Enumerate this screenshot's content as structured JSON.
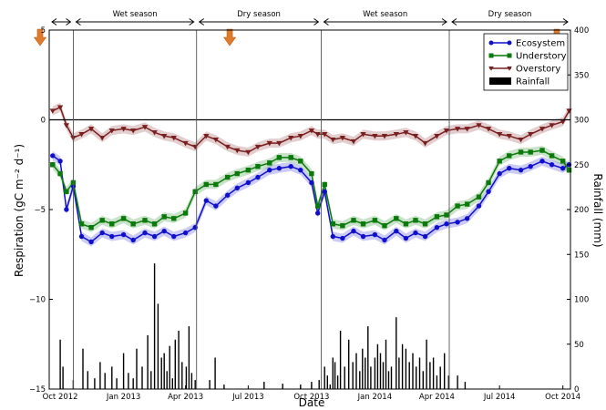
{
  "chart_data": {
    "type": "line",
    "xlabel": "Date",
    "ylabel_left": "Respiration (gC m⁻² d⁻¹)",
    "ylabel_right": "Rainfall (mm)",
    "ylim_left": [
      -15,
      5
    ],
    "ylim_right": [
      0,
      400
    ],
    "x_range": [
      "2012-09-15",
      "2014-10-12"
    ],
    "x_ticks": [
      {
        "date": "2012-10-01",
        "label": "Oct 2012"
      },
      {
        "date": "2013-01-01",
        "label": "Jan 2013"
      },
      {
        "date": "2013-04-01",
        "label": "Apr 2013"
      },
      {
        "date": "2013-07-01",
        "label": "Jul 2013"
      },
      {
        "date": "2013-10-01",
        "label": "Oct 2013"
      },
      {
        "date": "2014-01-01",
        "label": "Jan 2014"
      },
      {
        "date": "2014-04-01",
        "label": "Apr 2014"
      },
      {
        "date": "2014-07-01",
        "label": "Jul 2014"
      },
      {
        "date": "2014-10-01",
        "label": "Oct 2014"
      }
    ],
    "y_ticks_left": [
      5,
      0,
      -5,
      -10,
      -15
    ],
    "y_ticks_right": [
      400,
      350,
      300,
      250,
      200,
      150,
      100,
      50,
      0
    ],
    "season_boundaries": [
      "2012-10-20",
      "2013-04-17",
      "2013-10-15",
      "2014-04-19"
    ],
    "seasons": [
      {
        "label": "",
        "start": "2012-09-15",
        "end": "2012-10-20"
      },
      {
        "label": "Wet season",
        "start": "2012-10-20",
        "end": "2013-04-17"
      },
      {
        "label": "Dry season",
        "start": "2013-04-17",
        "end": "2013-10-15"
      },
      {
        "label": "Wet season",
        "start": "2013-10-15",
        "end": "2014-04-19"
      },
      {
        "label": "Dry season",
        "start": "2014-04-19",
        "end": "2014-10-12"
      }
    ],
    "event_arrows": [
      "2012-09-15",
      "2013-06-20",
      "2014-10-08"
    ],
    "zero_line": 0,
    "legend_position": "top-right",
    "series": [
      {
        "name": "Ecosystem",
        "color": "#1010cc",
        "marker": "circle",
        "x": [
          "2012-09-20",
          "2012-10-01",
          "2012-10-10",
          "2012-10-20",
          "2012-11-01",
          "2012-11-15",
          "2012-12-01",
          "2012-12-15",
          "2013-01-01",
          "2013-01-15",
          "2013-02-01",
          "2013-02-15",
          "2013-03-01",
          "2013-03-15",
          "2013-04-01",
          "2013-04-15",
          "2013-05-01",
          "2013-05-15",
          "2013-06-01",
          "2013-06-15",
          "2013-07-01",
          "2013-07-15",
          "2013-08-01",
          "2013-08-15",
          "2013-09-01",
          "2013-09-15",
          "2013-10-01",
          "2013-10-10",
          "2013-10-20",
          "2013-11-01",
          "2013-11-15",
          "2013-12-01",
          "2013-12-15",
          "2014-01-01",
          "2014-01-15",
          "2014-02-01",
          "2014-02-15",
          "2014-03-01",
          "2014-03-15",
          "2014-04-01",
          "2014-04-15",
          "2014-05-01",
          "2014-05-15",
          "2014-06-01",
          "2014-06-15",
          "2014-07-01",
          "2014-07-15",
          "2014-08-01",
          "2014-08-15",
          "2014-09-01",
          "2014-09-15",
          "2014-10-01",
          "2014-10-10"
        ],
        "y": [
          -2.0,
          -2.3,
          -5.0,
          -3.7,
          -6.5,
          -6.8,
          -6.3,
          -6.5,
          -6.4,
          -6.7,
          -6.3,
          -6.5,
          -6.2,
          -6.5,
          -6.3,
          -6.0,
          -4.5,
          -4.8,
          -4.2,
          -3.8,
          -3.5,
          -3.2,
          -2.8,
          -2.7,
          -2.6,
          -2.8,
          -3.5,
          -5.2,
          -4.0,
          -6.5,
          -6.6,
          -6.2,
          -6.5,
          -6.4,
          -6.7,
          -6.2,
          -6.6,
          -6.3,
          -6.5,
          -6.0,
          -5.8,
          -5.7,
          -5.5,
          -4.8,
          -4.0,
          -3.0,
          -2.7,
          -2.8,
          -2.6,
          -2.3,
          -2.5,
          -2.7,
          -2.5
        ]
      },
      {
        "name": "Understory",
        "color": "#0a7a0a",
        "marker": "square",
        "x": [
          "2012-09-20",
          "2012-10-01",
          "2012-10-10",
          "2012-10-20",
          "2012-11-01",
          "2012-11-15",
          "2012-12-01",
          "2012-12-15",
          "2013-01-01",
          "2013-01-15",
          "2013-02-01",
          "2013-02-15",
          "2013-03-01",
          "2013-03-15",
          "2013-04-01",
          "2013-04-15",
          "2013-05-01",
          "2013-05-15",
          "2013-06-01",
          "2013-06-15",
          "2013-07-01",
          "2013-07-15",
          "2013-08-01",
          "2013-08-15",
          "2013-09-01",
          "2013-09-15",
          "2013-10-01",
          "2013-10-10",
          "2013-10-20",
          "2013-11-01",
          "2013-11-15",
          "2013-12-01",
          "2013-12-15",
          "2014-01-01",
          "2014-01-15",
          "2014-02-01",
          "2014-02-15",
          "2014-03-01",
          "2014-03-15",
          "2014-04-01",
          "2014-04-15",
          "2014-05-01",
          "2014-05-15",
          "2014-06-01",
          "2014-06-15",
          "2014-07-01",
          "2014-07-15",
          "2014-08-01",
          "2014-08-15",
          "2014-09-01",
          "2014-09-15",
          "2014-10-01",
          "2014-10-10"
        ],
        "y": [
          -2.5,
          -3.0,
          -4.0,
          -3.5,
          -5.8,
          -6.0,
          -5.6,
          -5.8,
          -5.5,
          -5.8,
          -5.6,
          -5.8,
          -5.4,
          -5.5,
          -5.2,
          -4.0,
          -3.6,
          -3.6,
          -3.2,
          -3.0,
          -2.8,
          -2.6,
          -2.4,
          -2.1,
          -2.1,
          -2.3,
          -3.0,
          -4.8,
          -3.6,
          -5.8,
          -5.9,
          -5.6,
          -5.8,
          -5.6,
          -5.9,
          -5.5,
          -5.8,
          -5.6,
          -5.8,
          -5.4,
          -5.3,
          -4.8,
          -4.7,
          -4.3,
          -3.5,
          -2.3,
          -2.0,
          -1.8,
          -1.8,
          -1.7,
          -2.0,
          -2.3,
          -2.8
        ]
      },
      {
        "name": "Overstory",
        "color": "#7a1f1f",
        "marker": "triangle-down",
        "x": [
          "2012-09-20",
          "2012-10-01",
          "2012-10-10",
          "2012-10-20",
          "2012-11-01",
          "2012-11-15",
          "2012-12-01",
          "2012-12-15",
          "2013-01-01",
          "2013-01-15",
          "2013-02-01",
          "2013-02-15",
          "2013-03-01",
          "2013-03-15",
          "2013-04-01",
          "2013-04-15",
          "2013-05-01",
          "2013-05-15",
          "2013-06-01",
          "2013-06-15",
          "2013-07-01",
          "2013-07-15",
          "2013-08-01",
          "2013-08-15",
          "2013-09-01",
          "2013-09-15",
          "2013-10-01",
          "2013-10-10",
          "2013-10-20",
          "2013-11-01",
          "2013-11-15",
          "2013-12-01",
          "2013-12-15",
          "2014-01-01",
          "2014-01-15",
          "2014-02-01",
          "2014-02-15",
          "2014-03-01",
          "2014-03-15",
          "2014-04-01",
          "2014-04-15",
          "2014-05-01",
          "2014-05-15",
          "2014-06-01",
          "2014-06-15",
          "2014-07-01",
          "2014-07-15",
          "2014-08-01",
          "2014-08-15",
          "2014-09-01",
          "2014-09-15",
          "2014-10-01",
          "2014-10-10"
        ],
        "y": [
          0.5,
          0.7,
          -0.3,
          -1.0,
          -0.8,
          -0.5,
          -1.0,
          -0.6,
          -0.5,
          -0.6,
          -0.4,
          -0.7,
          -0.9,
          -1.0,
          -1.3,
          -1.5,
          -0.9,
          -1.1,
          -1.5,
          -1.7,
          -1.8,
          -1.5,
          -1.3,
          -1.3,
          -1.0,
          -0.9,
          -0.6,
          -0.8,
          -0.8,
          -1.1,
          -1.0,
          -1.2,
          -0.8,
          -0.9,
          -0.9,
          -0.8,
          -0.7,
          -0.9,
          -1.3,
          -0.9,
          -0.6,
          -0.5,
          -0.5,
          -0.3,
          -0.5,
          -0.8,
          -0.9,
          -1.1,
          -0.8,
          -0.5,
          -0.3,
          -0.1,
          0.5
        ]
      }
    ],
    "rainfall": {
      "name": "Rainfall",
      "color": "#000000",
      "x": [
        "2012-10-01",
        "2012-10-05",
        "2012-10-20",
        "2012-11-03",
        "2012-11-10",
        "2012-11-20",
        "2012-11-28",
        "2012-12-05",
        "2012-12-15",
        "2012-12-22",
        "2013-01-01",
        "2013-01-08",
        "2013-01-15",
        "2013-01-20",
        "2013-01-28",
        "2013-02-05",
        "2013-02-10",
        "2013-02-15",
        "2013-02-20",
        "2013-02-25",
        "2013-03-01",
        "2013-03-05",
        "2013-03-09",
        "2013-03-13",
        "2013-03-17",
        "2013-03-22",
        "2013-03-27",
        "2013-04-02",
        "2013-04-06",
        "2013-04-10",
        "2013-04-15",
        "2013-05-06",
        "2013-05-14",
        "2013-05-27",
        "2013-07-24",
        "2013-08-20",
        "2013-09-15",
        "2013-10-01",
        "2013-10-12",
        "2013-10-20",
        "2013-10-24",
        "2013-10-28",
        "2013-11-01",
        "2013-11-04",
        "2013-11-08",
        "2013-11-12",
        "2013-11-18",
        "2013-11-24",
        "2013-11-30",
        "2013-12-05",
        "2013-12-10",
        "2013-12-14",
        "2013-12-18",
        "2013-12-22",
        "2013-12-26",
        "2014-01-01",
        "2014-01-05",
        "2014-01-09",
        "2014-01-13",
        "2014-01-17",
        "2014-01-21",
        "2014-01-25",
        "2014-02-01",
        "2014-02-05",
        "2014-02-10",
        "2014-02-15",
        "2014-02-20",
        "2014-02-25",
        "2014-03-02",
        "2014-03-07",
        "2014-03-12",
        "2014-03-17",
        "2014-03-22",
        "2014-03-27",
        "2014-04-01",
        "2014-04-06",
        "2014-04-12",
        "2014-04-18",
        "2014-05-01",
        "2014-05-12"
      ],
      "y": [
        55,
        25,
        10,
        45,
        20,
        12,
        30,
        18,
        25,
        12,
        40,
        18,
        12,
        45,
        25,
        60,
        20,
        140,
        95,
        35,
        40,
        20,
        48,
        12,
        55,
        65,
        30,
        25,
        70,
        18,
        10,
        10,
        35,
        5,
        8,
        6,
        5,
        8,
        10,
        25,
        15,
        5,
        35,
        30,
        15,
        65,
        25,
        55,
        30,
        40,
        20,
        45,
        35,
        70,
        25,
        35,
        50,
        40,
        30,
        55,
        20,
        25,
        80,
        35,
        50,
        45,
        30,
        40,
        25,
        35,
        20,
        55,
        30,
        35,
        15,
        25,
        40,
        15,
        15,
        8
      ]
    }
  }
}
